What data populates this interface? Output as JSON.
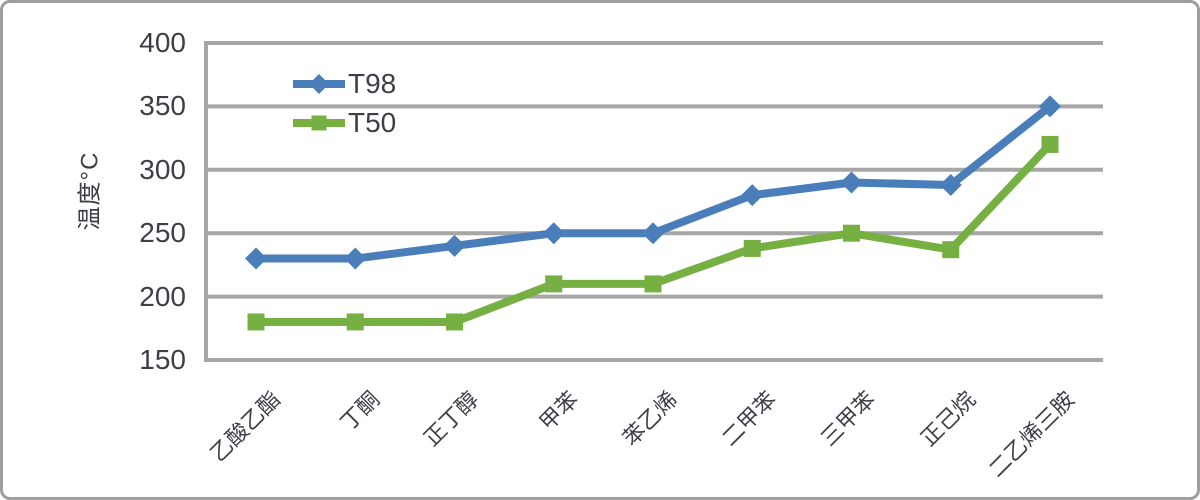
{
  "chart_data": {
    "type": "line",
    "title": "",
    "ylabel": "温度°C",
    "xlabel": "",
    "ylim": [
      150,
      400
    ],
    "yticks": [
      400,
      350,
      300,
      250,
      200,
      150
    ],
    "grid": true,
    "legend_position": "top-left-inside",
    "categories": [
      "乙酸乙酯",
      "丁酮",
      "正丁醇",
      "甲苯",
      "苯乙烯",
      "二甲苯",
      "三甲苯",
      "正己烷",
      "二乙烯三胺"
    ],
    "series": [
      {
        "name": "T98",
        "color": "#4A7EBB",
        "marker": "diamond",
        "values": [
          230,
          230,
          240,
          250,
          250,
          280,
          290,
          288,
          350
        ]
      },
      {
        "name": "T50",
        "color": "#76B043",
        "marker": "square",
        "values": [
          180,
          180,
          180,
          210,
          210,
          238,
          250,
          237,
          320
        ]
      }
    ]
  },
  "colors": {
    "grid": "#A6A6A6",
    "axis": "#A6A6A6",
    "text": "#3F3E47",
    "border": "#9E9E9E",
    "background": "#FFFFFF"
  }
}
